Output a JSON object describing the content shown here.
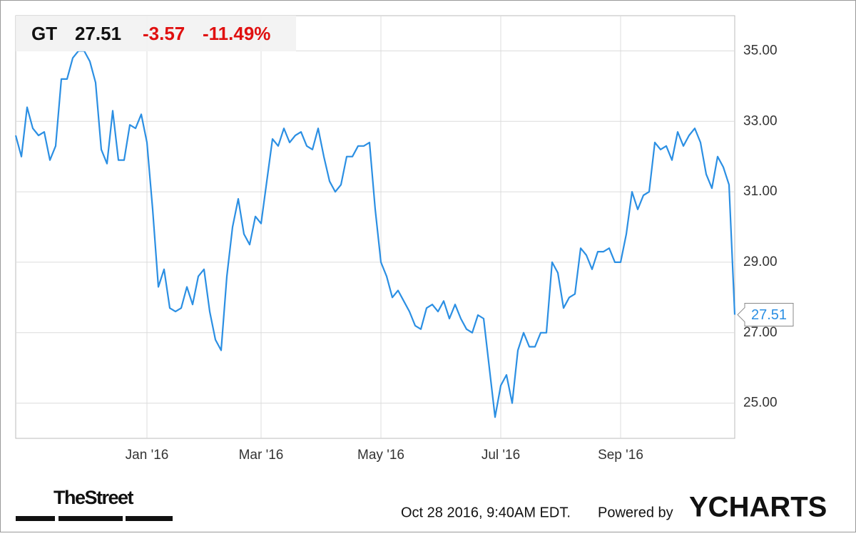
{
  "header": {
    "ticker": "GT",
    "price": 27.51,
    "change": -3.57,
    "change_percent": "-11.49%"
  },
  "footer": {
    "brand": "TheStreet",
    "timestamp": "Oct 28 2016, 9:40AM EDT.",
    "powered_by": "Powered by",
    "provider": "YCHARTS"
  },
  "chart_data": {
    "type": "line",
    "categories": [
      null,
      null,
      null,
      null,
      null,
      null,
      null,
      null,
      null,
      null,
      null,
      null,
      null,
      null,
      null,
      null,
      null,
      null,
      null,
      null,
      null,
      null,
      null,
      "Jan '16",
      null,
      null,
      null,
      null,
      null,
      null,
      null,
      null,
      null,
      null,
      null,
      null,
      null,
      null,
      null,
      null,
      null,
      null,
      null,
      "Mar '16",
      null,
      null,
      null,
      null,
      null,
      null,
      null,
      null,
      null,
      null,
      null,
      null,
      null,
      null,
      null,
      null,
      null,
      null,
      null,
      null,
      "May '16",
      null,
      null,
      null,
      null,
      null,
      null,
      null,
      null,
      null,
      null,
      null,
      null,
      null,
      null,
      null,
      null,
      null,
      null,
      null,
      null,
      "Jul '16",
      null,
      null,
      null,
      null,
      null,
      null,
      null,
      null,
      null,
      null,
      null,
      null,
      null,
      null,
      null,
      null,
      null,
      null,
      null,
      null,
      "Sep '16",
      null,
      null,
      null,
      null,
      null,
      null,
      null,
      null,
      null,
      null,
      null,
      null,
      null,
      null,
      null,
      null,
      null,
      null,
      null,
      null
    ],
    "series": [
      {
        "name": "GT",
        "color": "#2b8fe3",
        "values": [
          32.6,
          32.0,
          33.4,
          32.8,
          32.6,
          32.7,
          31.9,
          32.3,
          34.2,
          34.2,
          34.8,
          35.0,
          35.0,
          34.7,
          34.1,
          32.2,
          31.8,
          33.3,
          31.9,
          31.9,
          32.9,
          32.8,
          33.2,
          32.4,
          30.5,
          28.3,
          28.8,
          27.7,
          27.6,
          27.7,
          28.3,
          27.8,
          28.6,
          28.8,
          27.6,
          26.8,
          26.5,
          28.6,
          30.0,
          30.8,
          29.8,
          29.5,
          30.3,
          30.1,
          31.3,
          32.5,
          32.3,
          32.8,
          32.4,
          32.6,
          32.7,
          32.3,
          32.2,
          32.8,
          32.0,
          31.3,
          31.0,
          31.2,
          32.0,
          32.0,
          32.3,
          32.3,
          32.4,
          30.5,
          29.0,
          28.6,
          28.0,
          28.2,
          27.9,
          27.6,
          27.2,
          27.1,
          27.7,
          27.8,
          27.6,
          27.9,
          27.4,
          27.8,
          27.4,
          27.1,
          27.0,
          27.5,
          27.4,
          26.0,
          24.6,
          25.5,
          25.8,
          25.0,
          26.5,
          27.0,
          26.6,
          26.6,
          27.0,
          27.0,
          29.0,
          28.7,
          27.7,
          28.0,
          28.1,
          29.4,
          29.2,
          28.8,
          29.3,
          29.3,
          29.4,
          29.0,
          29.0,
          29.8,
          31.0,
          30.5,
          30.9,
          31.0,
          32.4,
          32.2,
          32.3,
          31.9,
          32.7,
          32.3,
          32.6,
          32.8,
          32.4,
          31.5,
          31.1,
          32.0,
          31.7,
          31.2,
          27.51
        ]
      }
    ],
    "ylim": [
      24,
      36
    ],
    "yticks": [
      {
        "value": 25,
        "label": "25.00"
      },
      {
        "value": 27,
        "label": "27.00"
      },
      {
        "value": 29,
        "label": "29.00"
      },
      {
        "value": 31,
        "label": "31.00"
      },
      {
        "value": 33,
        "label": "33.00"
      },
      {
        "value": 35,
        "label": "35.00"
      }
    ],
    "grid": true
  }
}
